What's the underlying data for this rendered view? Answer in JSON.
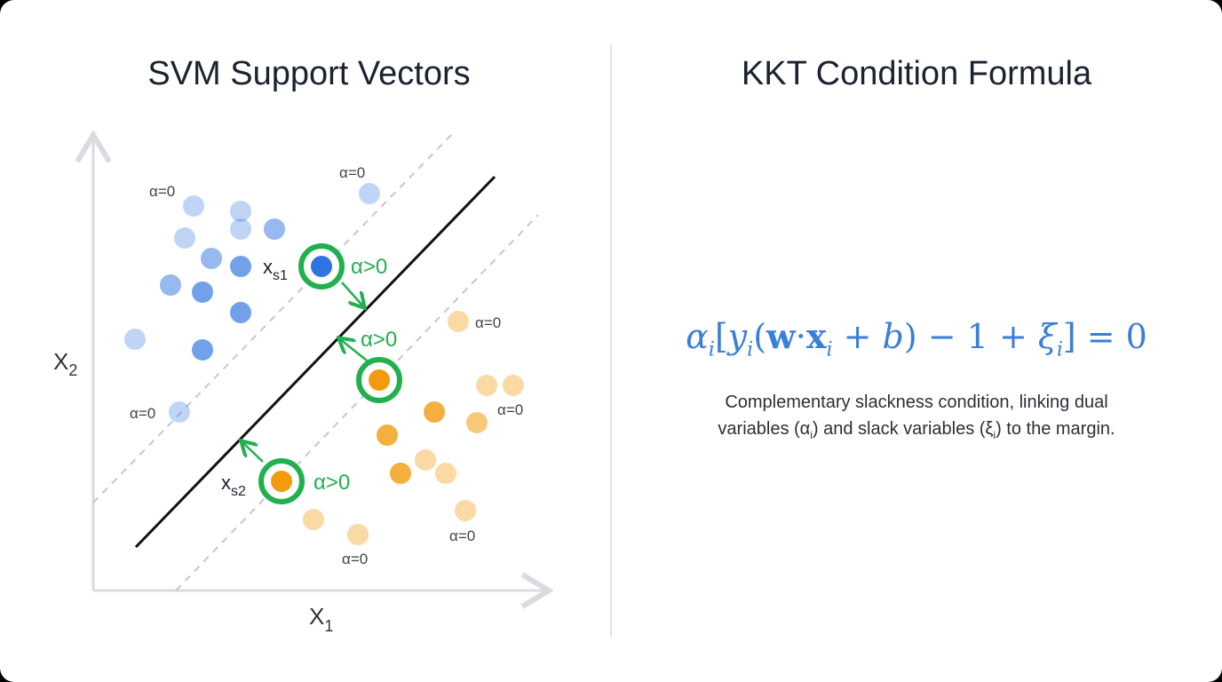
{
  "left_panel": {
    "title": "SVM Support Vectors",
    "x_axis_label": "X",
    "x_axis_sub": "1",
    "y_axis_label": "X",
    "y_axis_sub": "2",
    "support_vector_labels": [
      {
        "main": "x",
        "sub": "s1"
      },
      {
        "main": "x",
        "sub": "s2"
      }
    ],
    "alpha_positive_label": "α>0",
    "alpha_zero_label": "α=0",
    "colors": {
      "class_a": "#2f74e0",
      "class_b": "#f29b0f",
      "support_ring": "#22b04f",
      "hyperplane": "#111111",
      "margin": "#c4c7cc",
      "axis": "#d9dbe0"
    }
  },
  "right_panel": {
    "title": "KKT Condition Formula",
    "formula": {
      "alpha": "α",
      "i": "i",
      "lb": "[",
      "y": "y",
      "lp": "(",
      "w": "w",
      "dot": "·",
      "x": "x",
      "plus": " + ",
      "b": "b",
      "rp": ")",
      "minus": " − 1 + ",
      "xi": "ξ",
      "rb": "]",
      "eq": " = 0"
    },
    "caption_line1": "Complementary slackness condition, linking dual",
    "caption_line2_a": "variables (α",
    "caption_sub": "i",
    "caption_line2_b": ") and slack variables (ξ",
    "caption_line2_c": ") to the margin.",
    "formula_color": "#3a7fd9"
  }
}
